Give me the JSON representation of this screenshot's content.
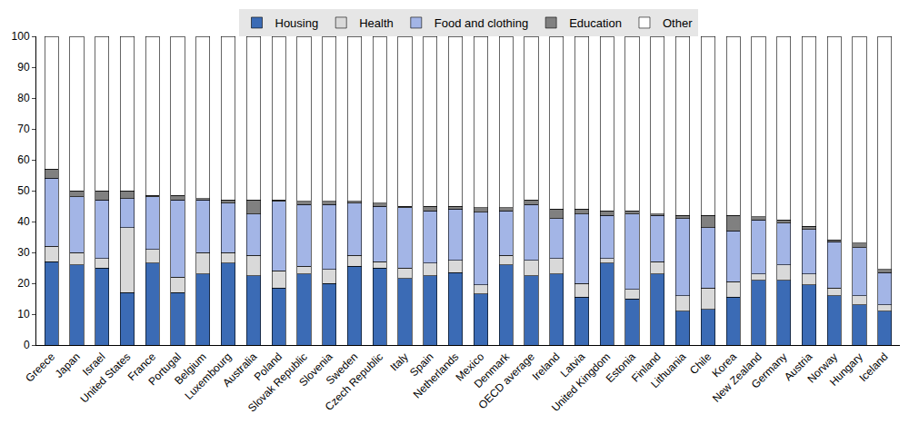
{
  "chart_data": {
    "type": "bar",
    "stacked": true,
    "grid": false,
    "legend": "top",
    "categories": [
      "Greece",
      "Japan",
      "Israel",
      "United States",
      "France",
      "Portugal",
      "Belgium",
      "Luxembourg",
      "Australia",
      "Poland",
      "Slovak Republic",
      "Slovenia",
      "Sweden",
      "Czech Republic",
      "Italy",
      "Spain",
      "Netherlands",
      "Mexico",
      "Denmark",
      "OECD average",
      "Ireland",
      "Latvia",
      "United Kingdom",
      "Estonia",
      "Finland",
      "Lithuania",
      "Chile",
      "Korea",
      "New Zealand",
      "Germany",
      "Austria",
      "Norway",
      "Hungary",
      "Iceland"
    ],
    "ylim": [
      0,
      100
    ],
    "yticks": [
      0,
      10,
      20,
      30,
      40,
      50,
      60,
      70,
      80,
      90,
      100
    ],
    "series": [
      {
        "name": "Housing",
        "color": "#3b6bb5",
        "values": [
          27,
          26,
          25,
          17,
          26.5,
          17,
          23,
          26.5,
          22.5,
          18.5,
          23,
          20,
          25.5,
          25,
          21.5,
          22.5,
          23.5,
          16.5,
          26,
          22.5,
          23,
          15.5,
          26.5,
          15,
          23,
          11,
          11.5,
          15.5,
          21,
          21,
          19.5,
          16,
          13,
          11
        ]
      },
      {
        "name": "Health",
        "color": "#d9d9d9",
        "values": [
          5,
          4,
          3,
          21,
          4.5,
          5,
          7,
          3.5,
          6.5,
          5.5,
          2.5,
          4.5,
          3.5,
          2,
          3.5,
          4,
          4,
          3,
          3,
          5,
          5,
          4.5,
          1.5,
          3,
          4,
          5,
          7,
          5,
          2,
          5,
          3.5,
          2.5,
          3,
          2
        ]
      },
      {
        "name": "Food and clothing",
        "color": "#a3b5e6",
        "values": [
          22,
          18,
          19,
          9.5,
          17,
          25,
          17,
          16,
          13.5,
          22.5,
          20,
          21,
          17,
          18,
          19.5,
          17,
          16.5,
          23.5,
          14.5,
          18,
          13,
          22.5,
          14,
          24.5,
          15,
          25,
          19.5,
          16.5,
          17.5,
          13.5,
          14.5,
          15,
          15.5,
          10.5
        ]
      },
      {
        "name": "Education",
        "color": "#808080",
        "values": [
          3,
          2,
          3,
          2.5,
          0.5,
          1.5,
          0.5,
          1,
          4.5,
          0.5,
          1,
          1,
          0.5,
          1,
          0.5,
          1.5,
          1,
          1.5,
          1,
          1.5,
          3,
          1.5,
          1.5,
          1,
          0.5,
          1,
          4,
          5,
          1,
          1,
          1,
          0.5,
          1.5,
          1
        ]
      },
      {
        "name": "Other",
        "color": "#ffffff",
        "values": [
          43,
          50,
          50,
          50,
          51.5,
          51.5,
          52.5,
          53,
          53,
          53,
          53.5,
          53.5,
          53.5,
          54,
          55,
          55,
          55,
          55.5,
          55.5,
          53,
          56,
          56,
          56.5,
          56.5,
          57.5,
          58,
          58,
          58,
          58.5,
          59.5,
          61.5,
          66,
          67,
          75.5
        ]
      }
    ]
  }
}
